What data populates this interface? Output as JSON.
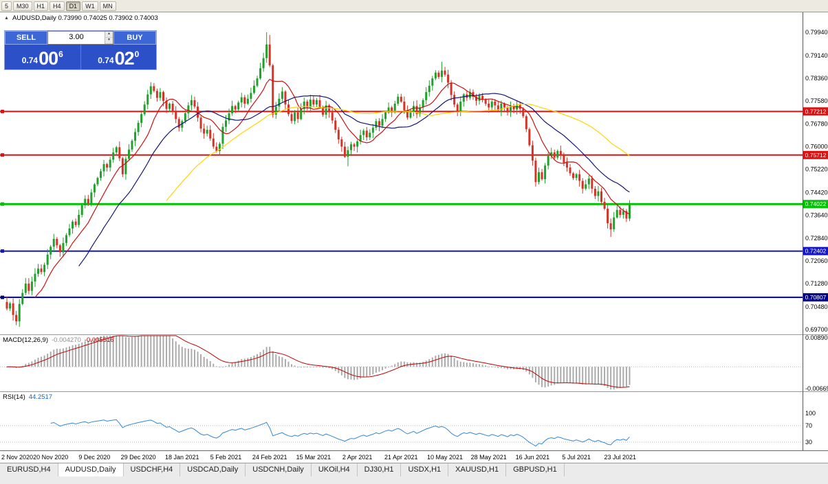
{
  "toolbar": {
    "periods": [
      {
        "label": "5",
        "active": false
      },
      {
        "label": "M30",
        "active": false
      },
      {
        "label": "H1",
        "active": false
      },
      {
        "label": "H4",
        "active": false
      },
      {
        "label": "D1",
        "active": true
      },
      {
        "label": "W1",
        "active": false
      },
      {
        "label": "MN",
        "active": false
      }
    ]
  },
  "icons": {
    "collapse": "▲",
    "spin_up": "▲",
    "spin_down": "▼"
  },
  "chart": {
    "title": "AUDUSD,Daily 0.73990 0.74025 0.73902 0.74003"
  },
  "trade_panel": {
    "sell_label": "SELL",
    "buy_label": "BUY",
    "volume": "3.00",
    "sell_price": {
      "prefix": "0.74",
      "big": "00",
      "sup": "6"
    },
    "buy_price": {
      "prefix": "0.74",
      "big": "02",
      "sup": "0"
    }
  },
  "macd": {
    "name": "MACD(12,26,9)",
    "value1": "-0.004270",
    "value2": "-0.005516",
    "axis_max": "0.00890",
    "axis_min": "-0.00669"
  },
  "rsi": {
    "name": "RSI(14)",
    "value": "44.2517",
    "axis": [
      "100",
      "70",
      "30"
    ]
  },
  "price_axis": {
    "ticks": [
      "0.79940",
      "0.79140",
      "0.78360",
      "0.77580",
      "0.76780",
      "0.76000",
      "0.75220",
      "0.74420",
      "0.73640",
      "0.72840",
      "0.72060",
      "0.71280",
      "0.70480",
      "0.69700"
    ]
  },
  "hlines": [
    {
      "price": 0.77212,
      "label": "0.77212",
      "color": "#dd1111",
      "width": 2
    },
    {
      "price": 0.75712,
      "label": "0.75712",
      "color": "#dd1111",
      "width": 2
    },
    {
      "price": 0.74022,
      "label": "0.74022",
      "color": "#00c400",
      "width": 3
    },
    {
      "price": 0.72402,
      "label": "0.72402",
      "color": "#1515cc",
      "width": 2
    },
    {
      "price": 0.70807,
      "label": "0.70807",
      "color": "#000088",
      "width": 2
    }
  ],
  "dates": [
    "2 Nov 2020",
    "20 Nov 2020",
    "9 Dec 2020",
    "29 Dec 2020",
    "18 Jan 2021",
    "5 Feb 2021",
    "24 Feb 2021",
    "15 Mar 2021",
    "2 Apr 2021",
    "21 Apr 2021",
    "10 May 2021",
    "28 May 2021",
    "16 Jun 2021",
    "5 Jul 2021",
    "23 Jul 2021"
  ],
  "tabs": [
    {
      "label": "EURUSD,H4",
      "active": false
    },
    {
      "label": "AUDUSD,Daily",
      "active": true
    },
    {
      "label": "USDCHF,H4",
      "active": false
    },
    {
      "label": "USDCAD,Daily",
      "active": false
    },
    {
      "label": "USDCNH,Daily",
      "active": false
    },
    {
      "label": "UKOil,H4",
      "active": false
    },
    {
      "label": "DJ30,H1",
      "active": false
    },
    {
      "label": "USDX,H1",
      "active": false
    },
    {
      "label": "XAUUSD,H1",
      "active": false
    },
    {
      "label": "GBPUSD,H1",
      "active": false
    }
  ],
  "chart_data": {
    "type": "candlestick",
    "symbol": "AUDUSD",
    "timeframe": "Daily",
    "title": "AUDUSD,Daily",
    "current": {
      "open": 0.7399,
      "high": 0.74025,
      "low": 0.73902,
      "close": 0.74003
    },
    "y_ticks": [
      0.7994,
      0.7914,
      0.7836,
      0.7758,
      0.7678,
      0.76,
      0.7522,
      0.7442,
      0.7364,
      0.7284,
      0.7206,
      0.7128,
      0.7048,
      0.697
    ],
    "x_tick_dates": [
      "2 Nov 2020",
      "20 Nov 2020",
      "9 Dec 2020",
      "29 Dec 2020",
      "18 Jan 2021",
      "5 Feb 2021",
      "24 Feb 2021",
      "15 Mar 2021",
      "2 Apr 2021",
      "21 Apr 2021",
      "10 May 2021",
      "28 May 2021",
      "16 Jun 2021",
      "5 Jul 2021",
      "23 Jul 2021"
    ],
    "x_tick_indices": [
      0,
      14,
      28,
      42,
      56,
      70,
      84,
      98,
      112,
      126,
      140,
      154,
      168,
      182,
      196
    ],
    "first_open": 0.7065,
    "closes": [
      0.7042,
      0.706,
      0.702,
      0.6998,
      0.7058,
      0.7096,
      0.7128,
      0.7103,
      0.7135,
      0.7162,
      0.718,
      0.7168,
      0.7193,
      0.7228,
      0.7255,
      0.7282,
      0.726,
      0.7236,
      0.7268,
      0.7295,
      0.7318,
      0.7342,
      0.733,
      0.7365,
      0.7398,
      0.742,
      0.7405,
      0.7442,
      0.747,
      0.7492,
      0.7515,
      0.754,
      0.7528,
      0.7555,
      0.758,
      0.7598,
      0.756,
      0.7505,
      0.7558,
      0.759,
      0.762,
      0.765,
      0.7682,
      0.7712,
      0.7745,
      0.778,
      0.7808,
      0.7792,
      0.7768,
      0.7788,
      0.7758,
      0.773,
      0.7748,
      0.772,
      0.7695,
      0.7665,
      0.7688,
      0.7715,
      0.7742,
      0.776,
      0.7738,
      0.77,
      0.7662,
      0.7645,
      0.7658,
      0.7628,
      0.76,
      0.7585,
      0.761,
      0.7668,
      0.769,
      0.7715,
      0.774,
      0.7728,
      0.7752,
      0.777,
      0.7748,
      0.7765,
      0.7785,
      0.781,
      0.7835,
      0.787,
      0.7905,
      0.7952,
      0.788,
      0.771,
      0.7738,
      0.7765,
      0.779,
      0.7745,
      0.7712,
      0.7688,
      0.7718,
      0.7695,
      0.773,
      0.7755,
      0.7735,
      0.7762,
      0.7745,
      0.776,
      0.7735,
      0.771,
      0.7742,
      0.7718,
      0.769,
      0.7658,
      0.7625,
      0.76,
      0.7565,
      0.7588,
      0.7608,
      0.76,
      0.7618,
      0.764,
      0.7655,
      0.7632,
      0.7648,
      0.7665,
      0.7688,
      0.7672,
      0.7695,
      0.7718,
      0.7735,
      0.7722,
      0.7748,
      0.7772,
      0.7755,
      0.7725,
      0.77,
      0.7718,
      0.774,
      0.7712,
      0.7735,
      0.776,
      0.7788,
      0.781,
      0.7835,
      0.7855,
      0.784,
      0.7862,
      0.7848,
      0.782,
      0.7778,
      0.7745,
      0.7722,
      0.7755,
      0.778,
      0.7768,
      0.7788,
      0.7772,
      0.7758,
      0.7775,
      0.7762,
      0.7748,
      0.7735,
      0.7755,
      0.7742,
      0.7725,
      0.7748,
      0.7735,
      0.7718,
      0.774,
      0.7728,
      0.7745,
      0.773,
      0.7705,
      0.766,
      0.7605,
      0.7552,
      0.7478,
      0.7512,
      0.7488,
      0.7535,
      0.7568,
      0.758,
      0.7562,
      0.7585,
      0.757,
      0.7545,
      0.7528,
      0.7508,
      0.7492,
      0.7505,
      0.7482,
      0.7455,
      0.747,
      0.749,
      0.7455,
      0.743,
      0.7446,
      0.741,
      0.7386,
      0.7336,
      0.7315,
      0.7356,
      0.7382,
      0.7365,
      0.7378,
      0.7352,
      0.74
    ],
    "wick_overrides": {
      "3": {
        "low": 0.6985
      },
      "83": {
        "high": 0.7994
      },
      "84": {
        "high": 0.7985
      },
      "109": {
        "low": 0.7532
      },
      "139": {
        "high": 0.7892
      },
      "169": {
        "low": 0.7462
      },
      "193": {
        "low": 0.7289
      }
    },
    "hlines": [
      0.77212,
      0.75712,
      0.74022,
      0.72402,
      0.70807
    ],
    "moving_averages": [
      {
        "period": 10,
        "color": "#cc1111"
      },
      {
        "period": 24,
        "color": "#151578"
      },
      {
        "period": 52,
        "color": "#ffd400"
      }
    ],
    "macd": {
      "fast": 12,
      "slow": 26,
      "signal": 9,
      "axis_max": 0.0089,
      "axis_min": -0.00669,
      "histogram_color": "#ababab",
      "signal_color": "#c00000",
      "last_main": -0.00427,
      "last_signal": -0.005516
    },
    "rsi": {
      "period": 14,
      "color": "#2f86d8",
      "levels": [
        70,
        30
      ],
      "last_value": 44.2517
    },
    "colors": {
      "up": "#1fa12b",
      "down": "#d63226",
      "background": "#ffffff"
    }
  }
}
